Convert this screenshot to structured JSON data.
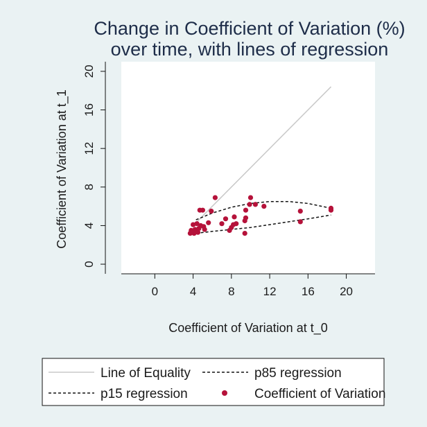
{
  "chart_data": {
    "type": "scatter",
    "title_line1": "Change in Coefficient of Variation (%)",
    "title_line2": "over time, with lines of regression",
    "xlabel": "Coefficient of Variation at t_0",
    "ylabel": "Coefficient of Variation at t_1",
    "xlim": [
      -3.5,
      23
    ],
    "ylim": [
      -1,
      21
    ],
    "xticks": [
      0,
      4,
      8,
      12,
      16,
      20
    ],
    "yticks": [
      0,
      4,
      8,
      12,
      16,
      20
    ],
    "grid": false,
    "legend_position": "bottom",
    "colors": {
      "background": "#eaf2f3",
      "plot_area": "#ffffff",
      "equality_line": "#c8c8c8",
      "regression_lines": "#111111",
      "points": "#b5123a",
      "title": "#1e2d49"
    },
    "series": [
      {
        "name": "Line of Equality",
        "style": "solid-light",
        "x": [
          4.3,
          18.4
        ],
        "y": [
          4.3,
          18.4
        ]
      },
      {
        "name": "p85 regression",
        "style": "dashed",
        "x": [
          4.3,
          6,
          8,
          10,
          12,
          14,
          16,
          18.4
        ],
        "y": [
          4.6,
          5.3,
          5.9,
          6.3,
          6.5,
          6.5,
          6.3,
          5.8
        ]
      },
      {
        "name": "p15 regression",
        "style": "dashed",
        "x": [
          4.3,
          6,
          8,
          10,
          12,
          14,
          16,
          18.4
        ],
        "y": [
          3.2,
          3.4,
          3.6,
          3.8,
          4.1,
          4.4,
          4.7,
          5.1
        ]
      },
      {
        "name": "Coefficient of Variation",
        "style": "points",
        "points": [
          [
            3.7,
            3.2
          ],
          [
            3.8,
            3.5
          ],
          [
            3.9,
            3.3
          ],
          [
            4.0,
            4.1
          ],
          [
            4.1,
            3.2
          ],
          [
            4.2,
            3.6
          ],
          [
            4.3,
            3.4
          ],
          [
            4.4,
            4.2
          ],
          [
            4.5,
            3.3
          ],
          [
            4.6,
            3.7
          ],
          [
            4.7,
            5.6
          ],
          [
            4.8,
            4.0
          ],
          [
            5.0,
            5.6
          ],
          [
            5.1,
            3.9
          ],
          [
            5.2,
            3.6
          ],
          [
            5.6,
            4.3
          ],
          [
            5.9,
            5.5
          ],
          [
            6.3,
            6.9
          ],
          [
            7.0,
            4.2
          ],
          [
            7.4,
            4.7
          ],
          [
            7.8,
            3.5
          ],
          [
            8.0,
            3.8
          ],
          [
            8.2,
            4.1
          ],
          [
            8.3,
            4.9
          ],
          [
            8.5,
            4.2
          ],
          [
            9.4,
            3.2
          ],
          [
            9.4,
            4.5
          ],
          [
            9.5,
            4.8
          ],
          [
            9.5,
            5.6
          ],
          [
            9.9,
            6.2
          ],
          [
            10.0,
            6.9
          ],
          [
            10.5,
            6.2
          ],
          [
            11.4,
            6.0
          ],
          [
            15.2,
            4.4
          ],
          [
            15.2,
            5.5
          ],
          [
            18.4,
            5.6
          ],
          [
            18.4,
            5.8
          ]
        ]
      }
    ]
  }
}
